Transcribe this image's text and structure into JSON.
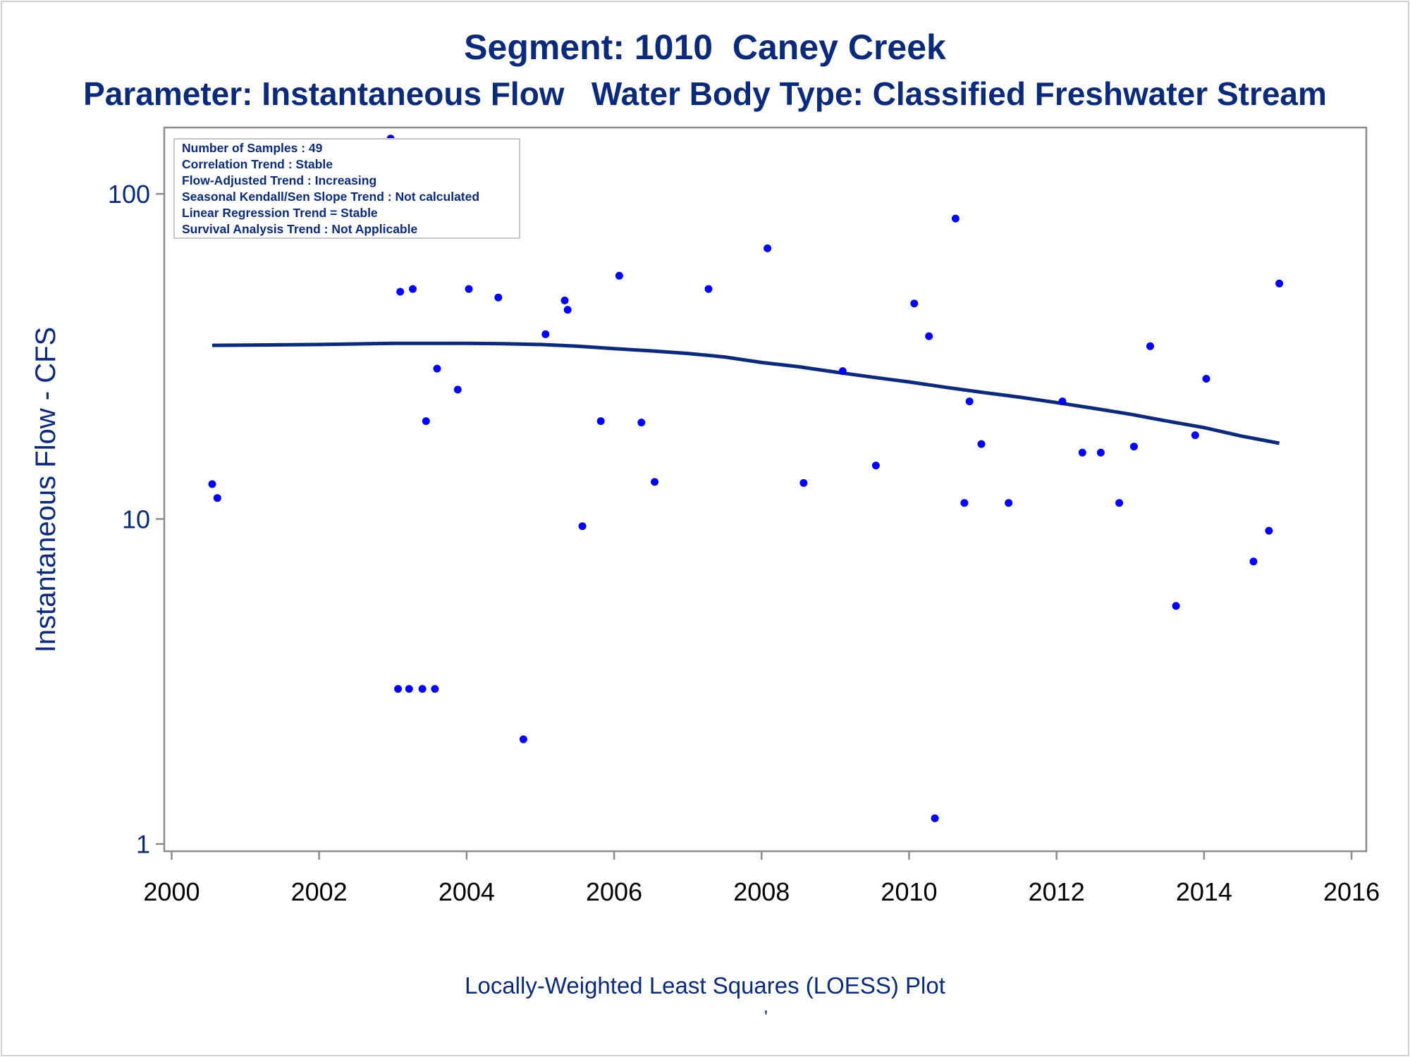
{
  "chart_data": {
    "type": "scatter",
    "title": "Segment: 1010  Caney Creek",
    "subtitle": "Parameter: Instantaneous Flow   Water Body Type: Classified Freshwater Stream",
    "ylabel": "Instantaneous Flow - CFS",
    "xlabel": "",
    "yscale": "log",
    "xlim": [
      1999.9,
      2016.2
    ],
    "ylim": [
      0.95,
      160
    ],
    "x_ticks": [
      2000,
      2002,
      2004,
      2006,
      2008,
      2010,
      2012,
      2014,
      2016
    ],
    "y_ticks": [
      1,
      10,
      100
    ],
    "points": [
      {
        "x": 2000.55,
        "y": 12.8
      },
      {
        "x": 2000.62,
        "y": 11.6
      },
      {
        "x": 2002.97,
        "y": 148
      },
      {
        "x": 2003.07,
        "y": 3.0
      },
      {
        "x": 2003.1,
        "y": 50
      },
      {
        "x": 2003.22,
        "y": 3.0
      },
      {
        "x": 2003.27,
        "y": 51
      },
      {
        "x": 2003.4,
        "y": 3.0
      },
      {
        "x": 2003.45,
        "y": 20
      },
      {
        "x": 2003.57,
        "y": 3.0
      },
      {
        "x": 2003.6,
        "y": 29
      },
      {
        "x": 2003.88,
        "y": 25
      },
      {
        "x": 2004.03,
        "y": 51
      },
      {
        "x": 2004.2,
        "y": 102
      },
      {
        "x": 2004.43,
        "y": 48
      },
      {
        "x": 2004.77,
        "y": 2.1
      },
      {
        "x": 2005.07,
        "y": 37
      },
      {
        "x": 2005.33,
        "y": 47
      },
      {
        "x": 2005.37,
        "y": 44
      },
      {
        "x": 2005.57,
        "y": 9.5
      },
      {
        "x": 2005.82,
        "y": 20
      },
      {
        "x": 2006.07,
        "y": 56
      },
      {
        "x": 2006.37,
        "y": 19.8
      },
      {
        "x": 2006.55,
        "y": 13
      },
      {
        "x": 2007.28,
        "y": 51
      },
      {
        "x": 2008.08,
        "y": 68
      },
      {
        "x": 2008.57,
        "y": 12.9
      },
      {
        "x": 2009.1,
        "y": 28.5
      },
      {
        "x": 2009.55,
        "y": 14.6
      },
      {
        "x": 2010.07,
        "y": 46
      },
      {
        "x": 2010.27,
        "y": 36.5
      },
      {
        "x": 2010.35,
        "y": 1.2
      },
      {
        "x": 2010.63,
        "y": 84
      },
      {
        "x": 2010.75,
        "y": 11.2
      },
      {
        "x": 2010.82,
        "y": 23
      },
      {
        "x": 2010.98,
        "y": 17
      },
      {
        "x": 2011.35,
        "y": 11.2
      },
      {
        "x": 2012.08,
        "y": 23
      },
      {
        "x": 2012.35,
        "y": 16
      },
      {
        "x": 2012.6,
        "y": 16
      },
      {
        "x": 2012.85,
        "y": 11.2
      },
      {
        "x": 2013.05,
        "y": 16.7
      },
      {
        "x": 2013.27,
        "y": 34
      },
      {
        "x": 2013.62,
        "y": 5.4
      },
      {
        "x": 2013.88,
        "y": 18.1
      },
      {
        "x": 2014.03,
        "y": 27
      },
      {
        "x": 2014.67,
        "y": 7.4
      },
      {
        "x": 2014.88,
        "y": 9.2
      },
      {
        "x": 2015.02,
        "y": 53
      }
    ],
    "loess": {
      "x": [
        2000.55,
        2002.0,
        2003.0,
        2004.0,
        2004.5,
        2005.0,
        2005.5,
        2006.0,
        2006.5,
        2007.0,
        2007.5,
        2008.0,
        2008.5,
        2009.0,
        2009.5,
        2010.0,
        2010.5,
        2011.0,
        2011.5,
        2012.0,
        2012.5,
        2013.0,
        2013.5,
        2014.0,
        2014.5,
        2015.02
      ],
      "y": [
        34.2,
        34.4,
        34.7,
        34.7,
        34.6,
        34.4,
        34.0,
        33.4,
        32.9,
        32.3,
        31.5,
        30.3,
        29.4,
        28.3,
        27.3,
        26.4,
        25.4,
        24.5,
        23.7,
        22.8,
        21.9,
        21.0,
        20.0,
        19.1,
        18.0,
        17.1
      ]
    },
    "legend_box": {
      "placement": "top-left",
      "lines": [
        "Number of Samples : 49",
        "Correlation Trend : Stable",
        "Flow-Adjusted Trend : Increasing",
        "Seasonal Kendall/Sen Slope Trend : Not calculated",
        "Linear Regression Trend = Stable",
        "Survival Analysis Trend : Not Applicable"
      ]
    },
    "grid": false
  },
  "footnote": "Locally-Weighted Least Squares (LOESS) Plot",
  "footnote_mark": "'",
  "colors": {
    "text": "#0c2a7a",
    "points": "#0000ff",
    "line": "#0c2a7a",
    "axis": "#8c8c8c",
    "inset_border": "#c8c8c8"
  }
}
